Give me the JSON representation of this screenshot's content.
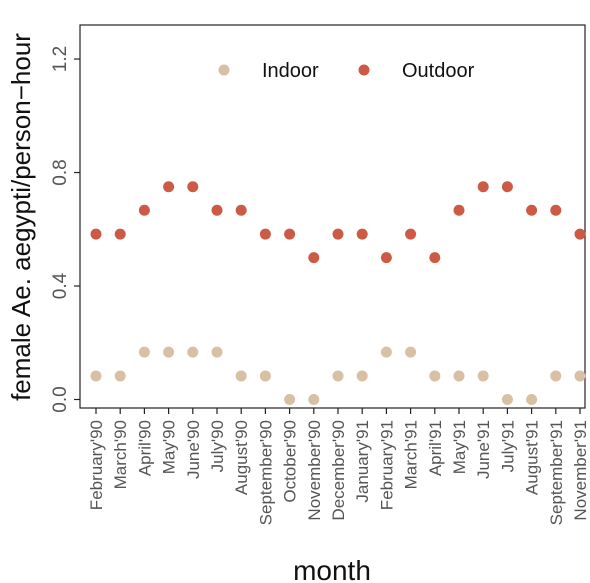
{
  "chart_data": {
    "type": "scatter",
    "xlabel": "month",
    "ylabel": "female Ae. aegypti/person−hour",
    "categories": [
      "February'90",
      "March'90",
      "April'90",
      "May'90",
      "June'90",
      "July'90",
      "August'90",
      "September'90",
      "October'90",
      "November'90",
      "December'90",
      "January'91",
      "February'91",
      "March'91",
      "April'91",
      "May'91",
      "June'91",
      "July'91",
      "August'91",
      "September'91",
      "November'91"
    ],
    "yticks": [
      "0.0",
      "0.4",
      "0.8",
      "1.2"
    ],
    "ylim": [
      -0.03,
      1.32
    ],
    "grid": false,
    "legend": "top-center",
    "series": [
      {
        "name": "Indoor",
        "color": "#d9bfa3",
        "values": [
          0.083,
          0.083,
          0.167,
          0.167,
          0.167,
          0.167,
          0.083,
          0.083,
          0.0,
          0.0,
          0.083,
          0.083,
          0.167,
          0.167,
          0.083,
          0.083,
          0.083,
          0.0,
          0.0,
          0.083,
          0.083
        ]
      },
      {
        "name": "Outdoor",
        "color": "#cc5a45",
        "values": [
          0.583,
          0.583,
          0.667,
          0.75,
          0.75,
          0.667,
          0.667,
          0.583,
          0.583,
          0.5,
          0.583,
          0.583,
          0.5,
          0.583,
          0.5,
          0.667,
          0.75,
          0.75,
          0.667,
          0.667,
          0.583
        ]
      }
    ]
  }
}
